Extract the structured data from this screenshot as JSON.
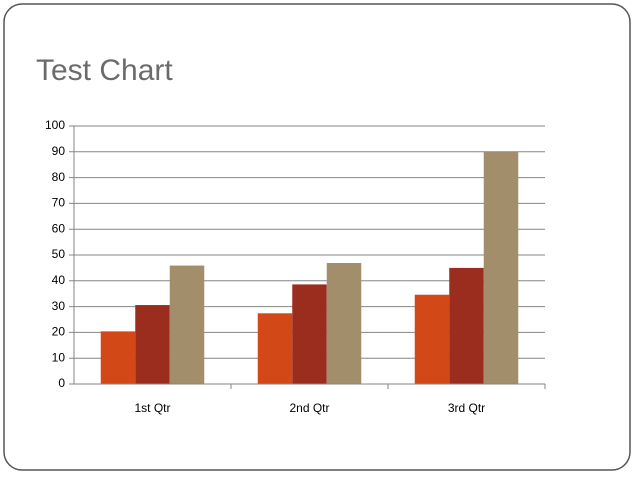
{
  "chart_data": {
    "type": "bar",
    "title": "Test Chart",
    "categories": [
      "1st Qtr",
      "2nd Qtr",
      "3rd Qtr"
    ],
    "series": [
      {
        "color": "#d34817",
        "values": [
          20.4,
          27.4,
          34.6
        ]
      },
      {
        "color": "#9b2d1f",
        "values": [
          30.6,
          38.6,
          45
        ]
      },
      {
        "color": "#a28e6a",
        "values": [
          45.9,
          46.9,
          90
        ]
      }
    ],
    "ylim": [
      0,
      100
    ],
    "yticks": [
      0,
      10,
      20,
      30,
      40,
      50,
      60,
      70,
      80,
      90,
      100
    ],
    "grid": true
  }
}
